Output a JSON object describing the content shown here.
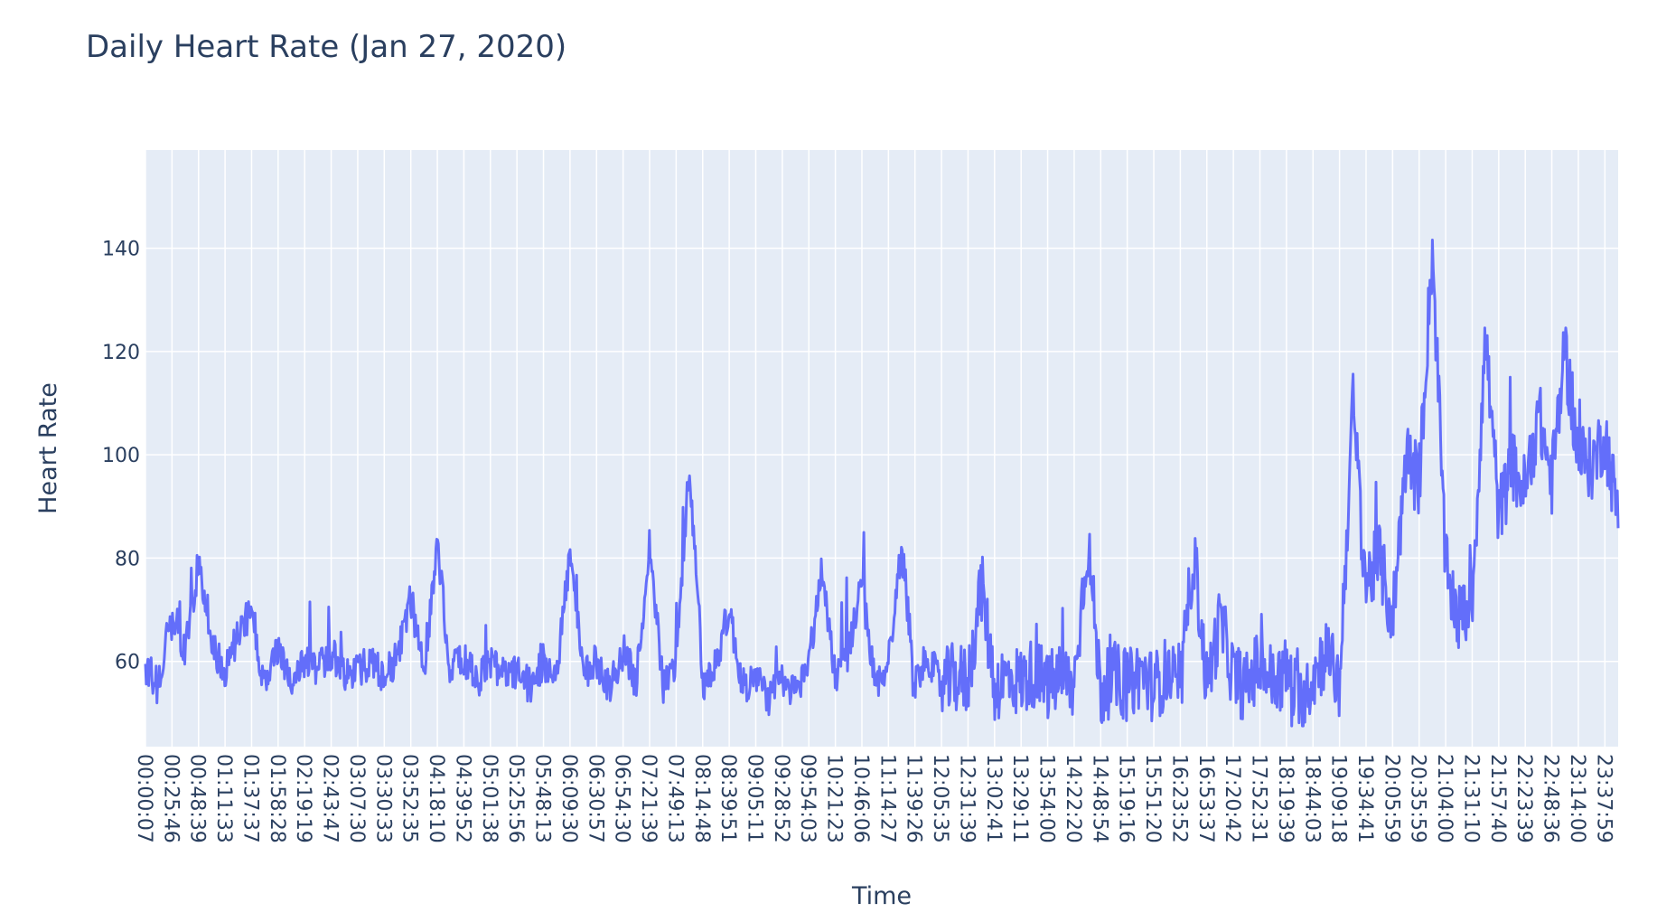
{
  "chart_data": {
    "type": "line",
    "title": "Daily Heart Rate (Jan 27, 2020)",
    "xlabel": "Time",
    "ylabel": "Heart Rate",
    "ylim": [
      43.5,
      159
    ],
    "yticks": [
      60,
      80,
      100,
      120,
      140
    ],
    "grid": true,
    "legend": "none",
    "colors": {
      "line": "#636efa",
      "plot_bg": "#e5ecf6",
      "grid": "#ffffff",
      "text": "#2a3f5f"
    },
    "xtick_labels": [
      "00:00:07",
      "00:25:46",
      "00:48:39",
      "01:11:33",
      "01:37:37",
      "01:58:28",
      "02:19:19",
      "02:43:47",
      "03:07:30",
      "03:30:33",
      "03:52:35",
      "04:18:10",
      "04:39:52",
      "05:01:38",
      "05:25:56",
      "05:48:13",
      "06:09:30",
      "06:30:57",
      "06:54:30",
      "07:21:39",
      "07:49:13",
      "08:14:48",
      "08:39:51",
      "09:05:11",
      "09:28:52",
      "09:54:03",
      "10:21:23",
      "10:46:06",
      "11:14:27",
      "11:39:26",
      "12:05:35",
      "12:31:39",
      "13:02:41",
      "13:29:11",
      "13:54:00",
      "14:22:20",
      "14:48:54",
      "15:19:16",
      "15:51:20",
      "16:23:52",
      "16:53:37",
      "17:20:42",
      "17:52:31",
      "18:19:39",
      "18:44:03",
      "19:09:18",
      "19:34:41",
      "20:05:59",
      "20:35:59",
      "21:04:00",
      "21:31:10",
      "21:57:40",
      "22:23:39",
      "22:48:36",
      "23:14:00",
      "23:37:59"
    ],
    "x_count": 112,
    "key_points": [
      [
        0,
        58
      ],
      [
        1,
        55
      ],
      [
        2,
        70
      ],
      [
        3,
        62
      ],
      [
        4,
        79
      ],
      [
        5,
        63
      ],
      [
        6,
        58
      ],
      [
        7,
        65
      ],
      [
        8,
        70
      ],
      [
        9,
        55
      ],
      [
        10,
        62
      ],
      [
        11,
        57
      ],
      [
        12,
        60
      ],
      [
        13,
        58
      ],
      [
        14,
        62
      ],
      [
        15,
        57
      ],
      [
        16,
        58
      ],
      [
        17,
        60
      ],
      [
        18,
        57
      ],
      [
        19,
        61
      ],
      [
        20,
        72
      ],
      [
        21,
        59
      ],
      [
        22,
        82
      ],
      [
        23,
        58
      ],
      [
        24,
        61
      ],
      [
        25,
        56
      ],
      [
        26,
        60
      ],
      [
        27,
        57
      ],
      [
        28,
        58
      ],
      [
        29,
        55
      ],
      [
        30,
        60
      ],
      [
        31,
        58
      ],
      [
        32,
        81
      ],
      [
        33,
        57
      ],
      [
        34,
        60
      ],
      [
        35,
        55
      ],
      [
        36,
        62
      ],
      [
        37,
        56
      ],
      [
        38,
        83
      ],
      [
        39,
        55
      ],
      [
        40,
        60
      ],
      [
        41,
        98
      ],
      [
        42,
        55
      ],
      [
        43,
        60
      ],
      [
        44,
        70
      ],
      [
        45,
        55
      ],
      [
        46,
        57
      ],
      [
        47,
        53
      ],
      [
        48,
        56
      ],
      [
        49,
        54
      ],
      [
        50,
        60
      ],
      [
        51,
        78
      ],
      [
        52,
        57
      ],
      [
        53,
        62
      ],
      [
        54,
        75
      ],
      [
        55,
        55
      ],
      [
        56,
        60
      ],
      [
        57,
        82
      ],
      [
        58,
        56
      ],
      [
        59,
        61
      ],
      [
        60,
        55
      ],
      [
        61,
        57
      ],
      [
        62,
        56
      ],
      [
        63,
        75
      ],
      [
        64,
        55
      ],
      [
        65,
        57
      ],
      [
        66,
        56
      ],
      [
        67,
        58
      ],
      [
        68,
        55
      ],
      [
        69,
        57
      ],
      [
        70,
        55
      ],
      [
        71,
        84
      ],
      [
        72,
        54
      ],
      [
        73,
        57
      ],
      [
        74,
        55
      ],
      [
        75,
        58
      ],
      [
        76,
        55
      ],
      [
        77,
        58
      ],
      [
        78,
        54
      ],
      [
        79,
        82
      ],
      [
        80,
        55
      ],
      [
        81,
        68
      ],
      [
        82,
        57
      ],
      [
        83,
        55
      ],
      [
        84,
        60
      ],
      [
        85,
        56
      ],
      [
        86,
        58
      ],
      [
        87,
        52
      ],
      [
        88,
        57
      ],
      [
        89,
        62
      ],
      [
        90,
        55
      ],
      [
        91,
        110
      ],
      [
        92,
        75
      ],
      [
        93,
        80
      ],
      [
        94,
        68
      ],
      [
        95,
        100
      ],
      [
        96,
        95
      ],
      [
        97,
        140
      ],
      [
        98,
        78
      ],
      [
        99,
        68
      ],
      [
        100,
        72
      ],
      [
        101,
        123
      ],
      [
        102,
        88
      ],
      [
        103,
        98
      ],
      [
        104,
        93
      ],
      [
        105,
        108
      ],
      [
        106,
        95
      ],
      [
        107,
        120
      ],
      [
        108,
        100
      ],
      [
        109,
        98
      ],
      [
        110,
        104
      ],
      [
        111,
        88
      ]
    ]
  }
}
